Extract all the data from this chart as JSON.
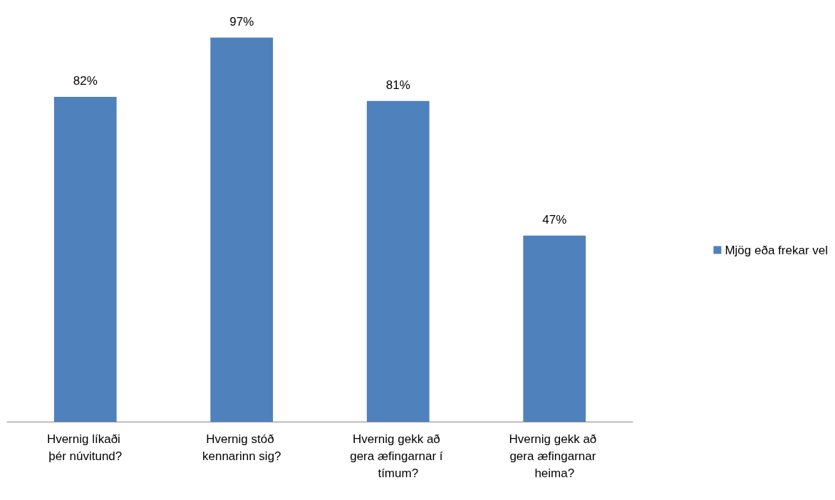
{
  "chart_data": {
    "type": "bar",
    "categories": [
      "Hvernig líkaði þér núvitund?",
      "Hvernig stóð kennarinn sig?",
      "Hvernig gekk að gera æfingarnar í tímum?",
      "Hvernig gekk að gera æfingarnar heima?"
    ],
    "series": [
      {
        "name": "Mjög eða frekar vel",
        "color": "#4f81bd",
        "values": [
          82,
          97,
          81,
          47
        ],
        "value_labels": [
          "82%",
          "97%",
          "81%",
          "47%"
        ]
      }
    ],
    "legend": "right"
  }
}
